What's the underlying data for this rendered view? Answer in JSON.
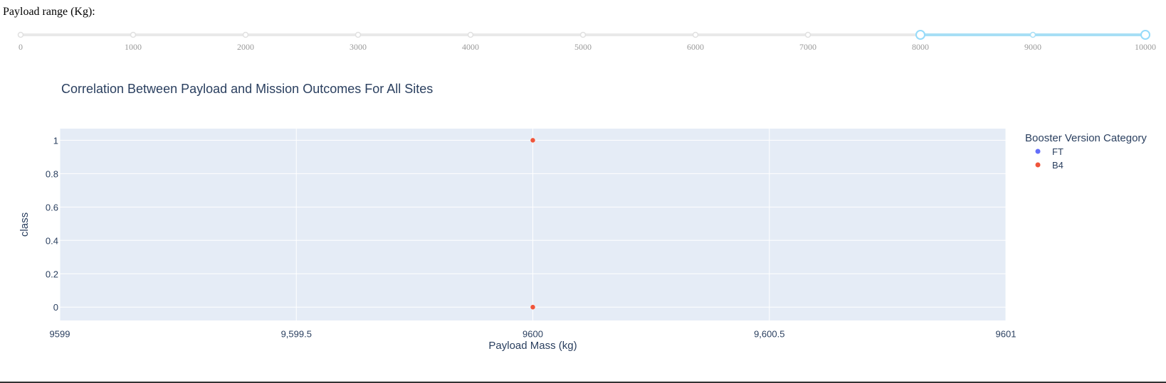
{
  "slider": {
    "label": "Payload range (Kg):",
    "min": 0,
    "max": 10000,
    "step": 1000,
    "selected_range": [
      8000,
      10000
    ],
    "marks": [
      "0",
      "1000",
      "2000",
      "3000",
      "4000",
      "5000",
      "6000",
      "7000",
      "8000",
      "9000",
      "10000"
    ],
    "track_color": "#e9e9e9",
    "active_color": "#a7dff5",
    "handle_color": "#96dbfa"
  },
  "chart_data": {
    "type": "scatter",
    "title": "Correlation Between Payload and Mission Outcomes For All Sites",
    "xlabel": "Payload Mass (kg)",
    "ylabel": "class",
    "xlim": [
      9599,
      9601
    ],
    "ylim": [
      -0.08,
      1.07
    ],
    "x_ticks": [
      9599,
      9599.5,
      9600,
      9600.5,
      9601
    ],
    "x_tick_labels": [
      "9599",
      "9,599.5",
      "9600",
      "9,600.5",
      "9601"
    ],
    "y_ticks": [
      0,
      0.2,
      0.4,
      0.6,
      0.8,
      1
    ],
    "y_tick_labels": [
      "0",
      "0.2",
      "0.4",
      "0.6",
      "0.8",
      "1"
    ],
    "grid": true,
    "legend_title": "Booster Version Category",
    "legend_position": "right",
    "plot_bg": "#e5ecf6",
    "series": [
      {
        "name": "FT",
        "color": "#636efa",
        "points": []
      },
      {
        "name": "B4",
        "color": "#ef553b",
        "points": [
          {
            "x": 9600,
            "y": 1
          },
          {
            "x": 9600,
            "y": 0
          }
        ]
      }
    ]
  }
}
